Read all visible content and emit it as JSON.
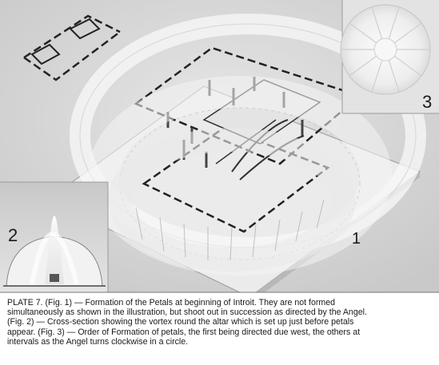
{
  "figures": {
    "fig1_number": "1",
    "fig2_number": "2",
    "fig3_number": "3"
  },
  "caption": {
    "lines": [
      "PLATE 7.  (Fig. 1) — Formation of the Petals at beginning of Introit.  They are not formed",
      "simultaneously as shown in the illustration, but shoot out in succession as directed by the Angel.",
      "(Fig. 2) — Cross-section showing the vortex round the altar which is set up just before petals",
      "appear.  (Fig. 3) — Order of Formation of petals, the first being directed due west, the others at",
      "intervals as the Angel turns clockwise in a circle."
    ]
  },
  "colors": {
    "paper": "#d9d9d9",
    "ink": "#1a1a1a",
    "caption_bg": "#ffffff"
  }
}
